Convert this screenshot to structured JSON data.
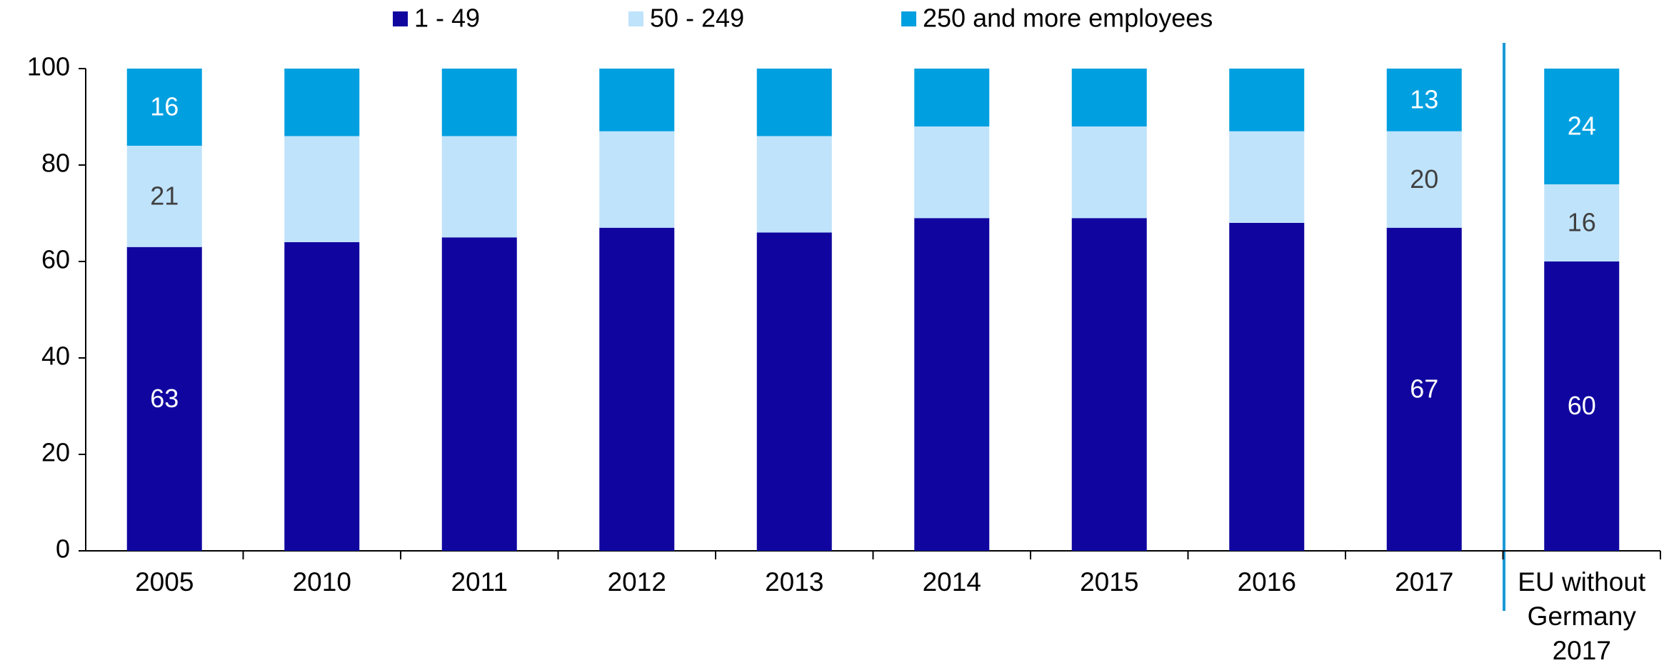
{
  "chart_data": {
    "type": "stacked_bar",
    "categories": [
      "2005",
      "2010",
      "2011",
      "2012",
      "2013",
      "2014",
      "2015",
      "2016",
      "2017",
      "EU without Germany 2017"
    ],
    "series": [
      {
        "name": "1 - 49",
        "color": "#10069f",
        "label_color": "#ffffff",
        "values": [
          63,
          64,
          65,
          67,
          66,
          69,
          69,
          68,
          67,
          60
        ],
        "value_labels": [
          "63",
          null,
          null,
          null,
          null,
          null,
          null,
          null,
          "67",
          "60"
        ]
      },
      {
        "name": "50 - 249",
        "color": "#bfe3fb",
        "label_color": "#404040",
        "values": [
          21,
          22,
          21,
          20,
          20,
          19,
          19,
          19,
          20,
          16
        ],
        "value_labels": [
          "21",
          null,
          null,
          null,
          null,
          null,
          null,
          null,
          "20",
          "16"
        ]
      },
      {
        "name": "250 and more employees",
        "color": "#009fe0",
        "label_color": "#ffffff",
        "values": [
          16,
          14,
          14,
          13,
          14,
          12,
          12,
          13,
          13,
          24
        ],
        "value_labels": [
          "16",
          null,
          null,
          null,
          null,
          null,
          null,
          null,
          "13",
          "24"
        ]
      }
    ],
    "ylim": [
      0,
      100
    ],
    "yticks": [
      0,
      20,
      40,
      60,
      80,
      100
    ],
    "grid": false,
    "legend": "top"
  }
}
